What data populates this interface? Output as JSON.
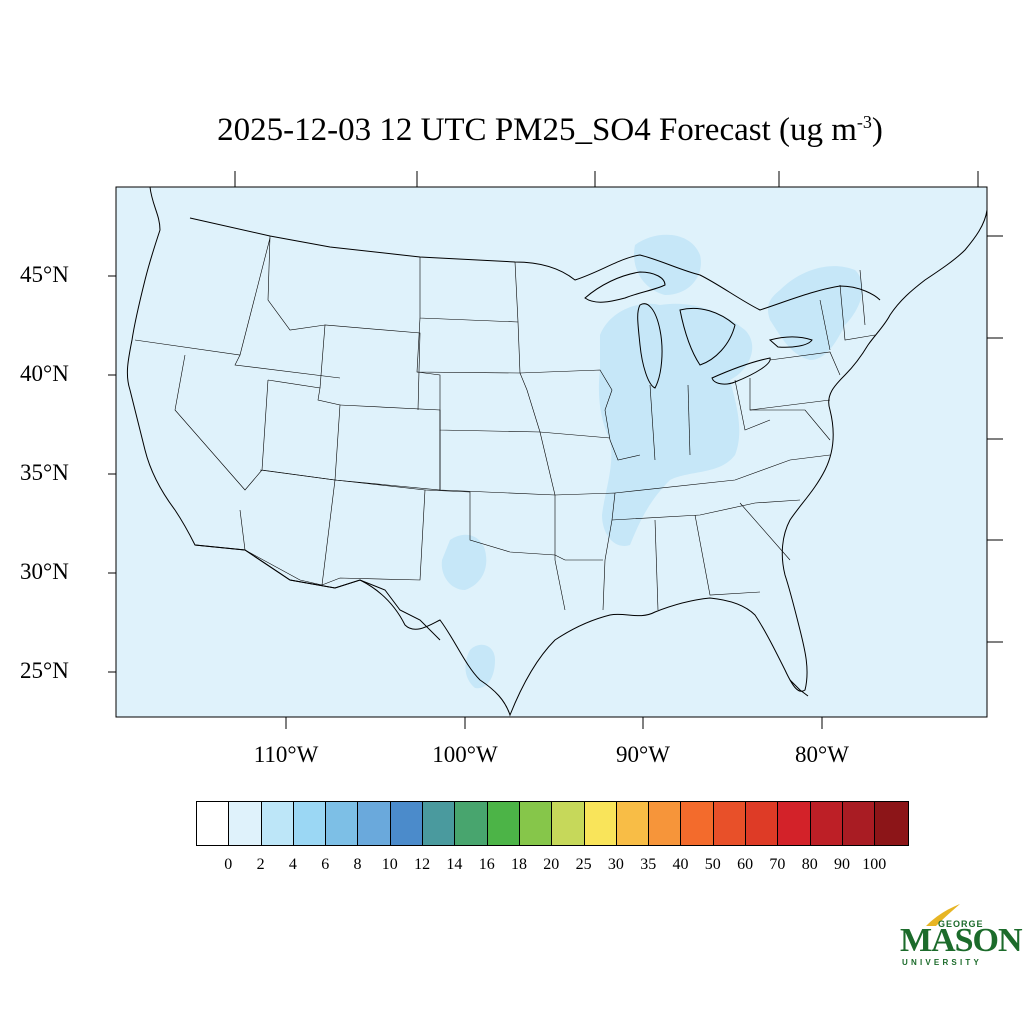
{
  "title": {
    "text": "2025-12-03 12 UTC PM25_SO4 Forecast (ug m",
    "superscript": "-3",
    "close": ")"
  },
  "map": {
    "region": "Continental United States",
    "variable": "PM25_SO4",
    "units": "ug m-3",
    "background_color": "#dff2fb",
    "enhanced_color": "#c6e7f8",
    "lat_labels": [
      "45°N",
      "40°N",
      "35°N",
      "30°N",
      "25°N"
    ],
    "lon_labels": [
      "110°W",
      "100°W",
      "90°W",
      "80°W"
    ]
  },
  "colorbar": {
    "colors": [
      "#ffffff",
      "#dff2fb",
      "#bde6f8",
      "#9bd7f4",
      "#7dbfe6",
      "#6aa9dc",
      "#4b8bcb",
      "#4a9a9e",
      "#48a56e",
      "#4cb447",
      "#86c64a",
      "#c6d85a",
      "#f9e45a",
      "#f8bd46",
      "#f6953a",
      "#f36b2c",
      "#e85029",
      "#de3b26",
      "#d32229",
      "#bd1f26",
      "#a91c23",
      "#8c1518"
    ],
    "labels": [
      "0",
      "2",
      "4",
      "6",
      "8",
      "10",
      "12",
      "14",
      "16",
      "18",
      "20",
      "25",
      "30",
      "35",
      "40",
      "50",
      "60",
      "70",
      "80",
      "90",
      "100"
    ]
  },
  "logo": {
    "line1": "GEORGE",
    "line2": "MASON",
    "line3": "UNIVERSITY"
  }
}
